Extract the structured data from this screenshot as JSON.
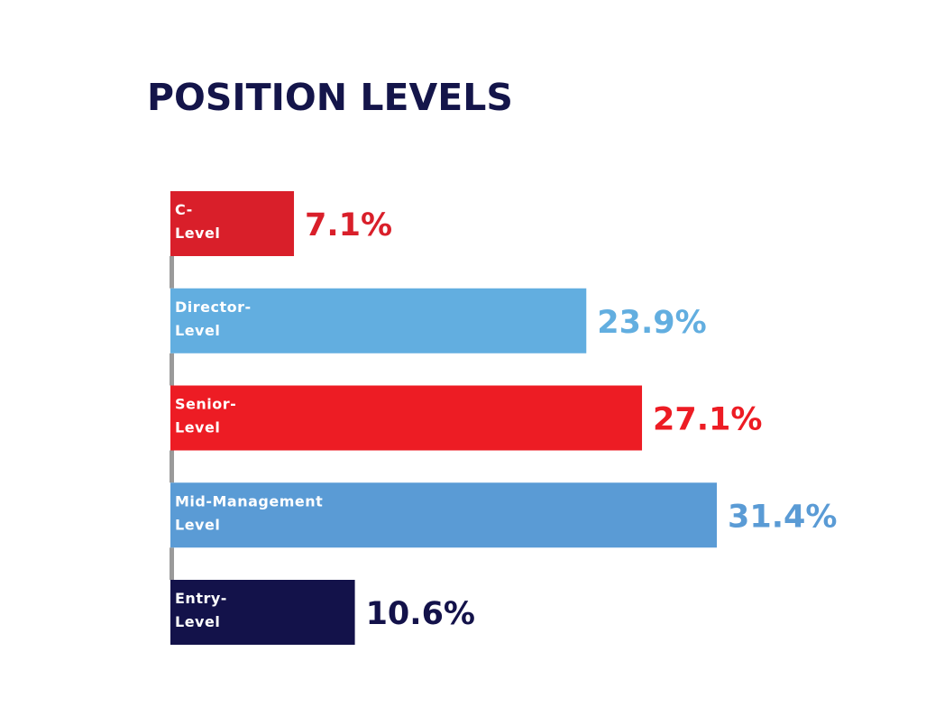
{
  "title": "POSITION LEVELS",
  "chart_data": {
    "type": "bar",
    "orientation": "horizontal",
    "title": "POSITION LEVELS",
    "xlabel": "",
    "ylabel": "",
    "grid": false,
    "legend": "none",
    "categories": [
      [
        "C-",
        "Level"
      ],
      [
        "Director-",
        "Level"
      ],
      [
        "Senior-",
        "Level"
      ],
      [
        "Mid-Management",
        "Level"
      ],
      [
        "Entry-",
        "Level"
      ]
    ],
    "values": [
      7.1,
      23.9,
      27.1,
      31.4,
      10.6
    ],
    "value_labels": [
      "7.1%",
      "23.9%",
      "27.1%",
      "31.4%",
      "10.6%"
    ],
    "colors": [
      "#d91f2a",
      "#62aee0",
      "#ed1c24",
      "#5a9bd5",
      "#13124a"
    ],
    "label_colors": [
      "#d91f2a",
      "#62aee0",
      "#ed1c24",
      "#5a9bd5",
      "#13124a"
    ],
    "connector_color": "#9a9a9a"
  }
}
